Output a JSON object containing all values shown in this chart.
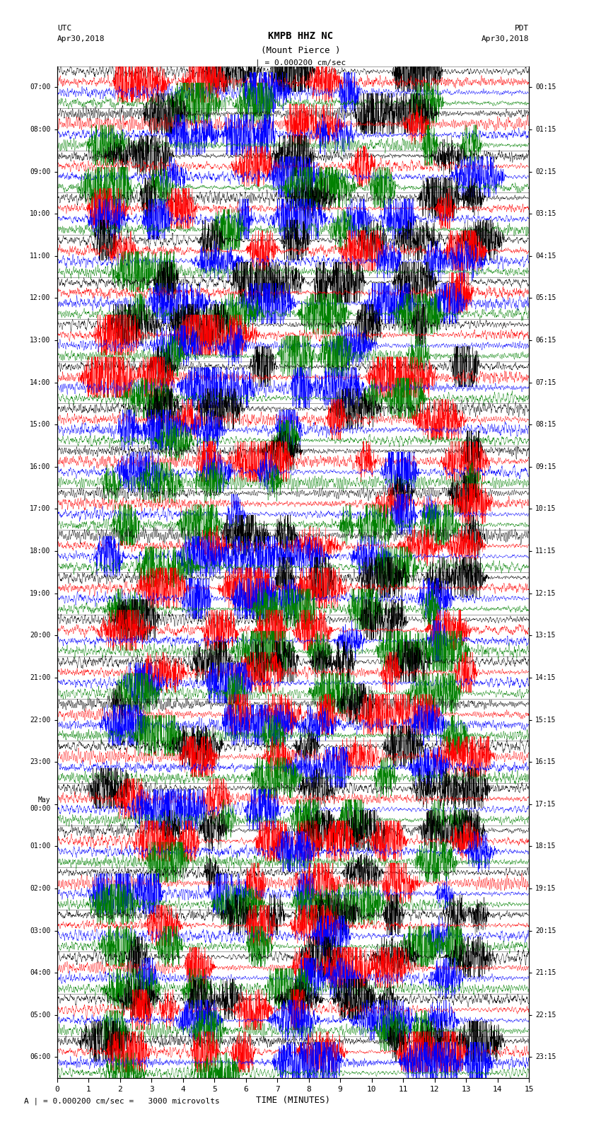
{
  "title_line1": "KMPB HHZ NC",
  "title_line2": "(Mount Pierce )",
  "scale_label": "| = 0.000200 cm/sec",
  "left_label": "UTC\nApr30,2018",
  "right_label": "PDT\nApr30,2018",
  "bottom_label": "A | = 0.000200 cm/sec =   3000 microvolts",
  "xlabel": "TIME (MINUTES)",
  "left_times": [
    "07:00",
    "08:00",
    "09:00",
    "10:00",
    "11:00",
    "12:00",
    "13:00",
    "14:00",
    "15:00",
    "16:00",
    "17:00",
    "18:00",
    "19:00",
    "20:00",
    "21:00",
    "22:00",
    "23:00",
    "May\n00:00",
    "01:00",
    "02:00",
    "03:00",
    "04:00",
    "05:00",
    "06:00"
  ],
  "right_times": [
    "00:15",
    "01:15",
    "02:15",
    "03:15",
    "04:15",
    "05:15",
    "06:15",
    "07:15",
    "08:15",
    "09:15",
    "10:15",
    "11:15",
    "12:15",
    "13:15",
    "14:15",
    "15:15",
    "16:15",
    "17:15",
    "18:15",
    "19:15",
    "20:15",
    "21:15",
    "22:15",
    "23:15"
  ],
  "n_hours": 24,
  "traces_per_hour": 4,
  "n_cols": 3000,
  "colors_cycle": [
    "black",
    "red",
    "blue",
    "green"
  ],
  "fig_width": 8.5,
  "fig_height": 16.13,
  "dpi": 100,
  "bg_color": "white",
  "line_width": 0.3
}
